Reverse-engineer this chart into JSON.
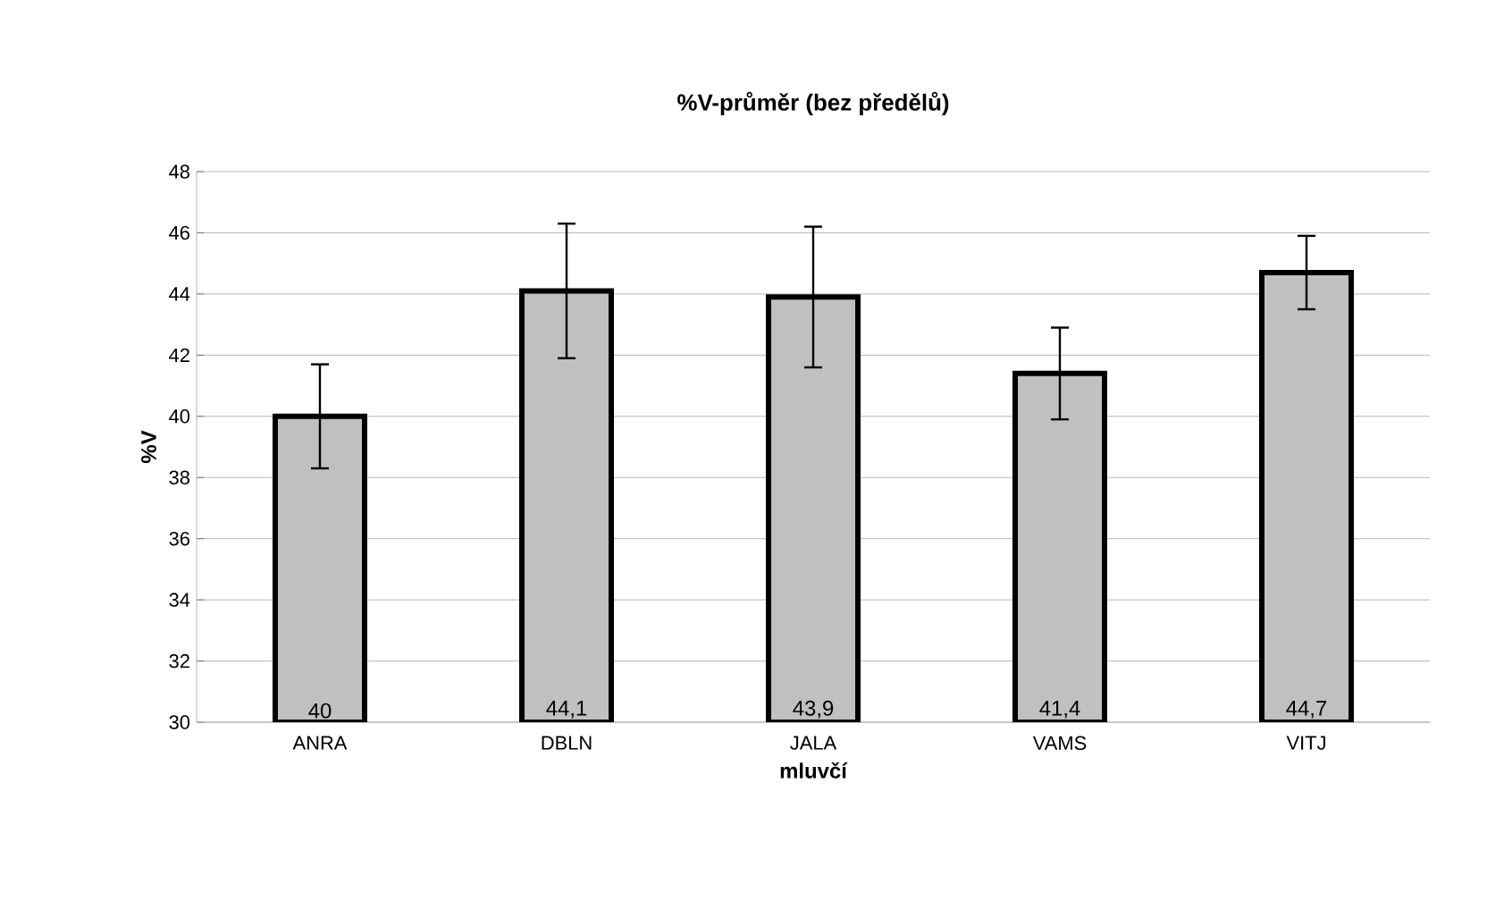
{
  "chart_data": {
    "type": "bar",
    "title": "%V-průměr (bez předělů)",
    "xlabel": "mluvčí",
    "ylabel": "%V",
    "categories": [
      "ANRA",
      "DBLN",
      "JALA",
      "VAMS",
      "VITJ"
    ],
    "values": [
      40,
      44.1,
      43.9,
      41.4,
      44.7
    ],
    "value_labels": [
      "40",
      "44,1",
      "43,9",
      "41,4",
      "44,7"
    ],
    "errors": [
      1.7,
      2.2,
      2.3,
      1.5,
      1.2
    ],
    "color": "#c0c0c0",
    "ylim": [
      30,
      48
    ],
    "yticks": [
      30,
      32,
      34,
      36,
      38,
      40,
      42,
      44,
      46,
      48
    ],
    "grid": "y"
  }
}
